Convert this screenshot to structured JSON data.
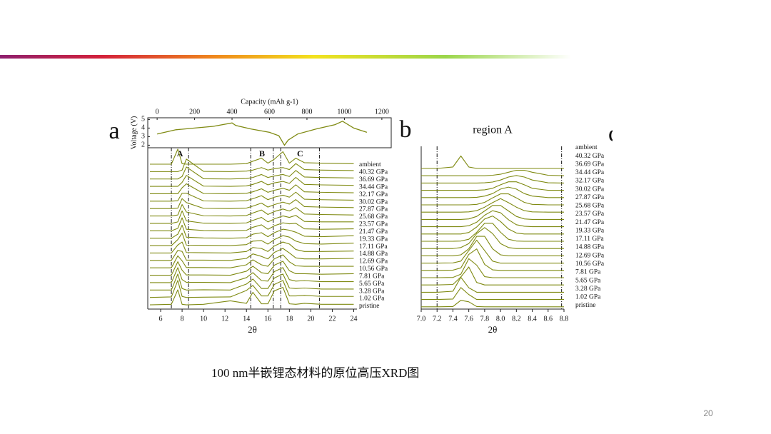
{
  "slide": {
    "caption": "100 nm半嵌锂态材料的原位高压XRD图",
    "page_number": "20",
    "partial_panel_label": "c"
  },
  "chart_data": [
    {
      "type": "line",
      "xlabel": "Capacity (mAh g-1)",
      "ylabel": "Voltage (V)",
      "color": "#7f8a12",
      "xlim": [
        -50,
        1250
      ],
      "xticks": [
        0,
        200,
        400,
        600,
        800,
        1000,
        1200
      ],
      "ylim": [
        1.7,
        5.2
      ],
      "yticks": [
        2,
        3,
        4,
        5
      ],
      "x": [
        0,
        100,
        200,
        300,
        400,
        420,
        500,
        600,
        650,
        680,
        700,
        750,
        850,
        950,
        990,
        1050,
        1120
      ],
      "series": [
        {
          "name": "Voltage",
          "values": [
            3.3,
            3.8,
            4.0,
            4.2,
            4.6,
            4.3,
            3.9,
            3.5,
            3.1,
            2.0,
            2.6,
            3.3,
            3.9,
            4.4,
            4.8,
            4.0,
            3.5
          ]
        }
      ]
    },
    {
      "type": "waterfall",
      "panel": "a",
      "xlabel": "2θ",
      "color": "#7f8a12",
      "xlim": [
        4.8,
        24.3
      ],
      "xticks": [
        6,
        8,
        10,
        12,
        14,
        16,
        18,
        20,
        22,
        24
      ],
      "regions": [
        {
          "label": "A",
          "xlim": [
            7.0,
            8.6
          ]
        },
        {
          "label": "B",
          "xlim": [
            14.4,
            16.5
          ]
        },
        {
          "label": "C",
          "xlim": [
            17.2,
            20.8
          ]
        }
      ],
      "x": [
        5,
        7,
        7.6,
        8,
        8.4,
        10,
        12.5,
        14,
        14.6,
        15.4,
        16,
        16.6,
        17.4,
        18,
        18.6,
        19.4,
        21,
        24
      ],
      "series": [
        {
          "name": "ambient",
          "values": [
            0,
            0,
            3.0,
            0.1,
            0,
            0,
            0,
            0.1,
            0.6,
            1.2,
            0.2,
            1.0,
            2.5,
            0.2,
            1.2,
            0.3,
            0.2,
            0.1
          ]
        },
        {
          "name": "40.32 GPa",
          "values": [
            0,
            0,
            0,
            0.3,
            2.5,
            0.05,
            0,
            0.1,
            0.3,
            0.8,
            0.3,
            0.6,
            0.8,
            0.4,
            1.6,
            0.4,
            0.3,
            0.2
          ]
        },
        {
          "name": "36.69 GPa",
          "values": [
            0,
            0,
            0,
            0.5,
            2.4,
            0.05,
            0,
            0.1,
            0.3,
            0.9,
            0.3,
            0.6,
            0.9,
            0.5,
            1.7,
            0.4,
            0.3,
            0.2
          ]
        },
        {
          "name": "34.44 GPa",
          "values": [
            0,
            0,
            0,
            0.8,
            2.2,
            0.05,
            0,
            0.1,
            0.4,
            1.0,
            0.3,
            0.7,
            1.0,
            0.6,
            1.8,
            0.4,
            0.3,
            0.2
          ]
        },
        {
          "name": "32.17 GPa",
          "values": [
            0,
            0,
            0,
            1.2,
            2.0,
            0.05,
            0,
            0.1,
            0.4,
            1.0,
            0.3,
            0.7,
            1.1,
            0.7,
            1.8,
            0.4,
            0.3,
            0.2
          ]
        },
        {
          "name": "30.02 GPa",
          "values": [
            0,
            0,
            0.1,
            1.6,
            1.6,
            0.05,
            0,
            0.1,
            0.5,
            1.1,
            0.3,
            0.8,
            1.2,
            0.8,
            1.8,
            0.4,
            0.3,
            0.2
          ]
        },
        {
          "name": "27.87 GPa",
          "values": [
            0,
            0,
            0.1,
            2.0,
            1.2,
            0.05,
            0,
            0.1,
            0.5,
            1.1,
            0.3,
            0.8,
            1.3,
            0.9,
            1.8,
            0.4,
            0.3,
            0.2
          ]
        },
        {
          "name": "25.68 GPa",
          "values": [
            0,
            0,
            0.2,
            2.3,
            0.8,
            0.05,
            0,
            0.1,
            0.6,
            1.2,
            0.3,
            0.9,
            1.4,
            1.0,
            1.7,
            0.4,
            0.3,
            0.2
          ]
        },
        {
          "name": "23.57 GPa",
          "values": [
            0,
            0,
            0.3,
            2.5,
            0.5,
            0.05,
            0,
            0.1,
            0.6,
            1.2,
            0.3,
            0.9,
            1.5,
            1.2,
            1.6,
            0.4,
            0.3,
            0.3
          ]
        },
        {
          "name": "21.47 GPa",
          "values": [
            0,
            0,
            0.5,
            2.6,
            0.3,
            0.05,
            0,
            0.1,
            0.7,
            1.2,
            0.3,
            1.0,
            1.6,
            1.4,
            1.5,
            0.4,
            0.3,
            0.4
          ]
        },
        {
          "name": "19.33 GPa",
          "values": [
            0,
            0,
            0.8,
            2.6,
            0.2,
            0.05,
            0,
            0.1,
            0.8,
            1.1,
            0.3,
            1.1,
            1.8,
            1.6,
            1.2,
            0.4,
            0.3,
            0.5
          ]
        },
        {
          "name": "17.11 GPa",
          "values": [
            0,
            0,
            1.2,
            2.5,
            0.1,
            0.05,
            0,
            0.2,
            0.9,
            1.0,
            0.3,
            1.2,
            2.0,
            1.7,
            0.9,
            0.4,
            0.3,
            0.5
          ]
        },
        {
          "name": "14.88 GPa",
          "values": [
            0,
            0,
            1.6,
            2.2,
            0.1,
            0.05,
            0,
            0.3,
            1.1,
            0.9,
            0.3,
            1.4,
            2.2,
            1.8,
            0.7,
            0.3,
            0.3,
            0.4
          ]
        },
        {
          "name": "12.69 GPa",
          "values": [
            0,
            0,
            2.0,
            1.8,
            0.05,
            0.05,
            0,
            0.4,
            1.3,
            0.8,
            0.3,
            1.6,
            2.4,
            1.5,
            0.5,
            0.3,
            0.3,
            0.4
          ]
        },
        {
          "name": "10.56 GPa",
          "values": [
            0,
            0,
            2.4,
            1.4,
            0.05,
            0.05,
            0,
            0.6,
            1.6,
            0.6,
            0.3,
            1.8,
            2.6,
            1.2,
            0.4,
            0.3,
            0.3,
            0.3
          ]
        },
        {
          "name": "7.81 GPa",
          "values": [
            0,
            0,
            2.7,
            1.0,
            0.05,
            0.05,
            0,
            0.8,
            1.8,
            0.5,
            0.3,
            2.0,
            2.8,
            0.9,
            0.3,
            0.3,
            0.2,
            0.3
          ]
        },
        {
          "name": "5.65 GPa",
          "values": [
            0,
            0,
            3.0,
            0.6,
            0.05,
            0.05,
            0,
            1.0,
            2.0,
            0.4,
            0.3,
            2.2,
            3.0,
            0.6,
            0.3,
            0.4,
            0.2,
            0.2
          ]
        },
        {
          "name": "3.28 GPa",
          "values": [
            0,
            0,
            3.2,
            0.3,
            0,
            0.05,
            0,
            1.2,
            2.2,
            0.3,
            0.3,
            2.4,
            3.2,
            0.4,
            0.3,
            0.4,
            0.2,
            0.2
          ]
        },
        {
          "name": "1.02 GPa",
          "values": [
            0,
            0.1,
            3.4,
            0.2,
            0,
            0.05,
            0.1,
            1.4,
            2.4,
            0.3,
            0.3,
            2.6,
            3.4,
            0.3,
            0.3,
            0.4,
            0.2,
            0.2
          ]
        },
        {
          "name": "pristine",
          "values": [
            0,
            0.1,
            3.0,
            0.1,
            0,
            0.1,
            0.8,
            0.3,
            2.5,
            0.2,
            0.2,
            2.8,
            3.5,
            0.2,
            0.1,
            0.3,
            0.1,
            0.1
          ]
        }
      ]
    },
    {
      "type": "waterfall",
      "panel": "b",
      "title": "region A",
      "xlabel": "2θ",
      "color": "#7f8a12",
      "xlim": [
        7,
        8.8
      ],
      "xticks": [
        {
          "value": 7,
          "label": "7.0"
        },
        7.2,
        7.4,
        7.6,
        7.8,
        {
          "value": 8,
          "label": "8.0"
        },
        8.2,
        8.4,
        8.6,
        8.8
      ],
      "regions": [
        {
          "xlim": [
            7.2,
            8.77
          ]
        }
      ],
      "x": [
        7.0,
        7.2,
        7.4,
        7.5,
        7.6,
        7.7,
        7.8,
        7.9,
        8.0,
        8.1,
        8.2,
        8.3,
        8.4,
        8.6,
        8.8
      ],
      "series": [
        {
          "name": "ambient",
          "values": [
            0,
            0,
            0.3,
            2.5,
            0.3,
            0,
            0,
            0,
            0,
            0,
            0,
            0,
            0,
            0,
            0
          ]
        },
        {
          "name": "40.32 GPa",
          "values": [
            0,
            0,
            0,
            0,
            0,
            0,
            0,
            0.1,
            0.3,
            0.7,
            1.1,
            1.1,
            0.7,
            0.1,
            0
          ]
        },
        {
          "name": "36.69 GPa",
          "values": [
            0,
            0,
            0,
            0,
            0,
            0,
            0.05,
            0.2,
            0.6,
            1.2,
            1.5,
            1.2,
            0.6,
            0.05,
            0
          ]
        },
        {
          "name": "34.44 GPa",
          "values": [
            0,
            0,
            0,
            0,
            0,
            0,
            0.1,
            0.4,
            1.1,
            1.7,
            1.7,
            1.1,
            0.4,
            0,
            0
          ]
        },
        {
          "name": "32.17 GPa",
          "values": [
            0,
            0,
            0,
            0,
            0,
            0.05,
            0.3,
            0.8,
            1.7,
            2.1,
            1.7,
            0.8,
            0.3,
            0,
            0
          ]
        },
        {
          "name": "30.02 GPa",
          "values": [
            0,
            0,
            0,
            0,
            0,
            0.1,
            0.5,
            1.4,
            2.2,
            2.2,
            1.4,
            0.5,
            0.1,
            0,
            0
          ]
        },
        {
          "name": "27.87 GPa",
          "values": [
            0,
            0,
            0,
            0,
            0.05,
            0.3,
            1.0,
            1.9,
            2.7,
            1.9,
            1.0,
            0.3,
            0.05,
            0,
            0
          ]
        },
        {
          "name": "25.68 GPa",
          "values": [
            0,
            0,
            0,
            0,
            0.1,
            0.6,
            1.7,
            2.8,
            2.8,
            1.7,
            0.6,
            0.1,
            0,
            0,
            0
          ]
        },
        {
          "name": "23.57 GPa",
          "values": [
            0,
            0,
            0,
            0,
            0.2,
            0.9,
            2.3,
            3.2,
            2.8,
            1.4,
            0.4,
            0.1,
            0,
            0,
            0
          ]
        },
        {
          "name": "21.47 GPa",
          "values": [
            0,
            0,
            0,
            0,
            0.3,
            1.4,
            3.0,
            3.6,
            2.5,
            1.0,
            0.2,
            0,
            0,
            0,
            0
          ]
        },
        {
          "name": "19.33 GPa",
          "values": [
            0,
            0,
            0,
            0.05,
            0.4,
            1.8,
            3.6,
            3.6,
            1.8,
            0.4,
            0.05,
            0,
            0,
            0,
            0
          ]
        },
        {
          "name": "17.11 GPa",
          "values": [
            0,
            0,
            0,
            0.2,
            1.0,
            3.0,
            4.2,
            3.0,
            1.0,
            0.2,
            0,
            0,
            0,
            0,
            0
          ]
        },
        {
          "name": "14.88 GPa",
          "values": [
            0,
            0,
            0,
            0.2,
            1.4,
            3.9,
            3.9,
            1.4,
            0.2,
            0,
            0,
            0,
            0,
            0,
            0
          ]
        },
        {
          "name": "12.69 GPa",
          "values": [
            0,
            0,
            0.05,
            0.4,
            2.5,
            4.6,
            2.5,
            0.4,
            0,
            0,
            0,
            0,
            0,
            0,
            0
          ]
        },
        {
          "name": "10.56 GPa",
          "values": [
            0,
            0,
            0.05,
            0.5,
            3.2,
            4.3,
            1.2,
            0.1,
            0,
            0,
            0,
            0,
            0,
            0,
            0
          ]
        },
        {
          "name": "7.81 GPa",
          "values": [
            0,
            0,
            0.05,
            0.7,
            3.8,
            2.5,
            0.2,
            0,
            0,
            0,
            0,
            0,
            0,
            0,
            0
          ]
        },
        {
          "name": "5.65 GPa",
          "values": [
            0,
            0,
            0.1,
            1.6,
            3.6,
            0.5,
            0,
            0,
            0,
            0,
            0,
            0,
            0,
            0,
            0
          ]
        },
        {
          "name": "3.28 GPa",
          "values": [
            0,
            0,
            0.2,
            3.0,
            0.9,
            0,
            0,
            0,
            0,
            0,
            0,
            0,
            0,
            0,
            0
          ]
        },
        {
          "name": "1.02 GPa",
          "values": [
            0,
            0,
            0.1,
            2.4,
            1.0,
            0,
            0,
            0,
            0,
            0,
            0,
            0,
            0,
            0,
            0
          ]
        },
        {
          "name": "pristine",
          "values": [
            0,
            0,
            0.05,
            1.3,
            1.0,
            0.05,
            0,
            0,
            0,
            0,
            0,
            0,
            0,
            0,
            0
          ]
        }
      ]
    }
  ]
}
